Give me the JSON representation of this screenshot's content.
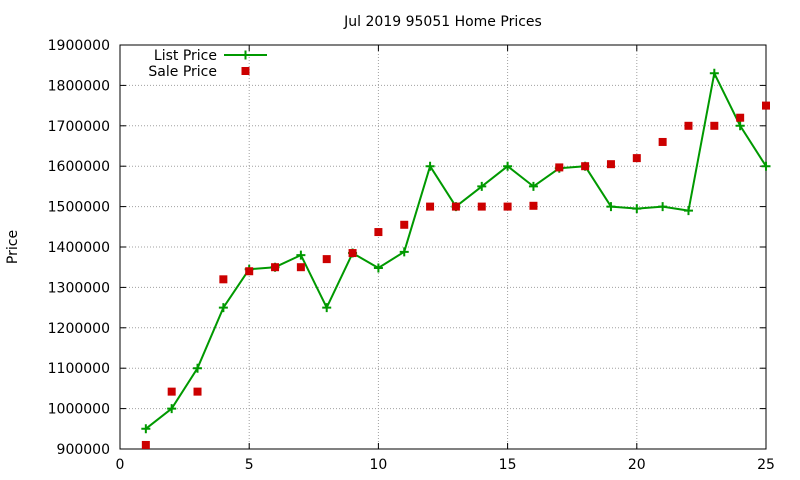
{
  "chart_data": {
    "type": "line",
    "title": "Jul 2019 95051 Home Prices",
    "xlabel": "",
    "ylabel": "Price",
    "xlim": [
      0,
      25
    ],
    "ylim": [
      900000,
      1900000
    ],
    "x_ticks": [
      0,
      5,
      10,
      15,
      20,
      25
    ],
    "y_ticks": [
      900000,
      1000000,
      1100000,
      1200000,
      1300000,
      1400000,
      1500000,
      1600000,
      1700000,
      1800000,
      1900000
    ],
    "grid": true,
    "legend_position": "top-left",
    "series": [
      {
        "name": "List Price",
        "style": "line-with-plus-markers",
        "color": "#009900",
        "x": [
          1,
          2,
          3,
          4,
          5,
          6,
          7,
          8,
          9,
          10,
          11,
          12,
          13,
          14,
          15,
          16,
          17,
          18,
          19,
          20,
          21,
          22,
          23,
          24,
          25
        ],
        "values": [
          950000,
          1000000,
          1100000,
          1250000,
          1345000,
          1350000,
          1380000,
          1250000,
          1385000,
          1348000,
          1388000,
          1600000,
          1500000,
          1550000,
          1600000,
          1550000,
          1595000,
          1600000,
          1500000,
          1495000,
          1500000,
          1490000,
          1830000,
          1700000,
          1600000
        ]
      },
      {
        "name": "Sale Price",
        "style": "square-markers",
        "color": "#cc0000",
        "x": [
          1,
          2,
          3,
          4,
          5,
          6,
          7,
          8,
          9,
          10,
          11,
          12,
          13,
          14,
          15,
          16,
          17,
          18,
          19,
          20,
          21,
          22,
          23,
          24,
          25
        ],
        "values": [
          910000,
          1042000,
          1042000,
          1320000,
          1340000,
          1350000,
          1350000,
          1370000,
          1385000,
          1437000,
          1455000,
          1500000,
          1500000,
          1500000,
          1500000,
          1502000,
          1597000,
          1600000,
          1605000,
          1620000,
          1660000,
          1700000,
          1700000,
          1720000,
          1750000
        ]
      }
    ]
  }
}
